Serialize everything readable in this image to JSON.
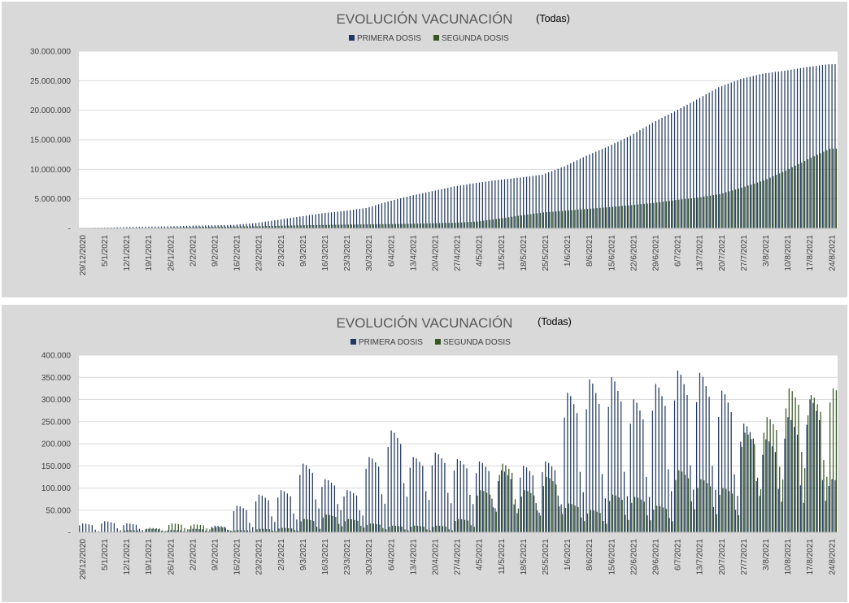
{
  "colors": {
    "primera": "#203864",
    "segunda": "#375623",
    "panel_bg": "#d9d9d9",
    "plot_bg": "#ffffff"
  },
  "chart_data": [
    {
      "type": "bar",
      "title": "EVOLUCIÓN VACUNACIÓN",
      "subtitle": "(Todas)",
      "legend_position": "top",
      "grid": true,
      "ylim": [
        0,
        30000000
      ],
      "yticks": [
        "-",
        "5.000.000",
        "10.000.000",
        "15.000.000",
        "20.000.000",
        "25.000.000",
        "30.000.000"
      ],
      "xtick_labels": [
        "29/12/2020",
        "5/1/2021",
        "12/1/2021",
        "19/1/2021",
        "26/1/2021",
        "2/2/2021",
        "9/2/2021",
        "16/2/2021",
        "23/2/2021",
        "2/3/2021",
        "9/3/2021",
        "16/3/2021",
        "23/3/2021",
        "30/3/2021",
        "6/4/2021",
        "13/4/2021",
        "20/4/2021",
        "27/4/2021",
        "4/5/2021",
        "11/5/2021",
        "18/5/2021",
        "25/5/2021",
        "1/6/2021",
        "8/6/2021",
        "15/6/2021",
        "22/6/2021",
        "29/6/2021",
        "6/7/2021",
        "13/7/2021",
        "20/7/2021",
        "27/7/2021",
        "3/8/2021",
        "10/8/2021",
        "17/8/2021",
        "24/8/2021"
      ],
      "series": [
        {
          "name": "PRIMERA DOSIS",
          "color": "#203864",
          "weekly_values": [
            50000,
            110000,
            210000,
            290000,
            340000,
            440000,
            520000,
            600000,
            900000,
            1450000,
            2000000,
            2550000,
            2950000,
            3450000,
            4550000,
            5500000,
            6300000,
            7100000,
            7700000,
            8200000,
            8600000,
            9100000,
            10500000,
            12300000,
            13900000,
            15700000,
            17900000,
            19800000,
            21800000,
            23900000,
            25300000,
            26200000,
            26700000,
            27300000,
            27800000
          ]
        },
        {
          "name": "SEGUNDA DOSIS",
          "color": "#375623",
          "weekly_values": [
            0,
            0,
            10000,
            60000,
            130000,
            220000,
            280000,
            320000,
            360000,
            440000,
            520000,
            580000,
            640000,
            680000,
            720000,
            780000,
            860000,
            950000,
            1150000,
            1650000,
            2200000,
            2700000,
            3000000,
            3300000,
            3600000,
            3950000,
            4300000,
            4800000,
            5200000,
            5800000,
            6900000,
            8100000,
            9800000,
            11700000,
            13500000
          ]
        }
      ]
    },
    {
      "type": "bar",
      "title": "EVOLUCIÓN VACUNACIÓN",
      "subtitle": "(Todas)",
      "legend_position": "top",
      "grid": true,
      "ylim": [
        0,
        400000
      ],
      "yticks": [
        "-",
        "50.000",
        "100.000",
        "150.000",
        "200.000",
        "250.000",
        "300.000",
        "350.000",
        "400.000"
      ],
      "xtick_labels": [
        "29/12/2020",
        "5/1/2021",
        "12/1/2021",
        "19/1/2021",
        "26/1/2021",
        "2/2/2021",
        "9/2/2021",
        "16/2/2021",
        "23/2/2021",
        "2/3/2021",
        "9/3/2021",
        "16/3/2021",
        "23/3/2021",
        "30/3/2021",
        "6/4/2021",
        "13/4/2021",
        "20/4/2021",
        "27/4/2021",
        "4/5/2021",
        "11/5/2021",
        "18/5/2021",
        "25/5/2021",
        "1/6/2021",
        "8/6/2021",
        "15/6/2021",
        "22/6/2021",
        "29/6/2021",
        "6/7/2021",
        "13/7/2021",
        "20/7/2021",
        "27/7/2021",
        "3/8/2021",
        "10/8/2021",
        "17/8/2021",
        "24/8/2021"
      ],
      "series": [
        {
          "name": "PRIMERA DOSIS",
          "color": "#203864",
          "weekly_peak_values": [
            20000,
            25000,
            20000,
            8000,
            5000,
            8000,
            15000,
            60000,
            85000,
            95000,
            155000,
            120000,
            95000,
            170000,
            230000,
            170000,
            180000,
            165000,
            160000,
            140000,
            150000,
            160000,
            315000,
            345000,
            350000,
            300000,
            335000,
            365000,
            360000,
            320000,
            245000,
            210000,
            260000,
            300000,
            120000
          ],
          "weekly_low_values": [
            0,
            2000,
            3000,
            1000,
            1000,
            1000,
            2000,
            5000,
            15000,
            20000,
            40000,
            40000,
            30000,
            50000,
            60000,
            60000,
            50000,
            50000,
            40000,
            30000,
            30000,
            50000,
            60000,
            40000,
            45000,
            50000,
            60000,
            60000,
            60000,
            50000,
            60000,
            50000,
            40000,
            40000,
            50000
          ]
        },
        {
          "name": "SEGUNDA DOSIS",
          "color": "#375623",
          "weekly_peak_values": [
            0,
            0,
            5000,
            10000,
            20000,
            18000,
            12000,
            5000,
            8000,
            10000,
            30000,
            40000,
            30000,
            20000,
            15000,
            15000,
            15000,
            30000,
            95000,
            155000,
            95000,
            125000,
            65000,
            50000,
            85000,
            80000,
            60000,
            140000,
            120000,
            100000,
            225000,
            260000,
            325000,
            310000,
            325000
          ],
          "weekly_low_values": [
            0,
            0,
            0,
            2000,
            5000,
            5000,
            2000,
            1000,
            2000,
            3000,
            5000,
            10000,
            8000,
            5000,
            3000,
            3000,
            3000,
            10000,
            40000,
            40000,
            30000,
            30000,
            20000,
            15000,
            20000,
            20000,
            20000,
            40000,
            30000,
            30000,
            80000,
            100000,
            120000,
            100000,
            180000
          ]
        }
      ]
    }
  ]
}
